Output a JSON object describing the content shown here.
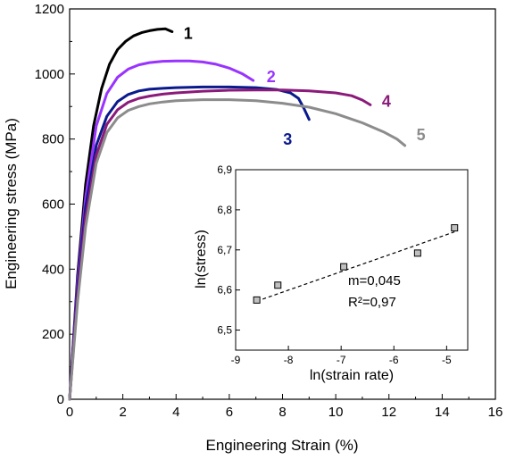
{
  "chart_data": [
    {
      "type": "line",
      "xlabel": "Engineering Strain (%)",
      "ylabel": "Engineering stress (MPa)",
      "xlim": [
        0,
        16
      ],
      "ylim": [
        0,
        1200
      ],
      "xticks": [
        0,
        2,
        4,
        6,
        8,
        10,
        12,
        14,
        16
      ],
      "yticks": [
        0,
        200,
        400,
        600,
        800,
        1000,
        1200
      ],
      "xtick_labels": [
        "0",
        "2",
        "4",
        "6",
        "8",
        "10",
        "12",
        "14",
        "16"
      ],
      "ytick_labels": [
        "0",
        "200",
        "400",
        "600",
        "800",
        "1000",
        "1200"
      ],
      "grid": false,
      "series": [
        {
          "label": "1",
          "color": "#000000",
          "x": [
            0,
            0.3,
            0.6,
            0.9,
            1.2,
            1.5,
            1.8,
            2.1,
            2.4,
            2.7,
            3.0,
            3.3,
            3.6,
            3.85
          ],
          "y": [
            0,
            380,
            660,
            840,
            955,
            1030,
            1075,
            1100,
            1117,
            1127,
            1133,
            1137,
            1139,
            1130
          ]
        },
        {
          "label": "2",
          "color": "#9933ff",
          "x": [
            0,
            0.3,
            0.6,
            1.0,
            1.4,
            1.8,
            2.2,
            2.6,
            3.0,
            3.5,
            4.0,
            4.5,
            5.0,
            5.5,
            6.0,
            6.5,
            6.9
          ],
          "y": [
            0,
            360,
            620,
            840,
            940,
            990,
            1015,
            1028,
            1035,
            1039,
            1040,
            1040,
            1037,
            1030,
            1018,
            1000,
            980
          ]
        },
        {
          "label": "3",
          "color": "#0a1a8c",
          "x": [
            0,
            0.3,
            0.6,
            1.0,
            1.4,
            1.8,
            2.2,
            2.6,
            3.0,
            3.5,
            4.0,
            5.0,
            6.0,
            7.0,
            7.8,
            8.3,
            8.6,
            8.8,
            9.0
          ],
          "y": [
            0,
            340,
            590,
            780,
            870,
            915,
            937,
            948,
            953,
            956,
            958,
            960,
            960,
            958,
            952,
            942,
            925,
            895,
            860
          ]
        },
        {
          "label": "4",
          "color": "#8b1a7a",
          "x": [
            0,
            0.3,
            0.6,
            1.0,
            1.4,
            1.8,
            2.2,
            2.6,
            3.0,
            3.5,
            4.0,
            5.0,
            6.0,
            7.0,
            8.0,
            9.0,
            10.0,
            10.6,
            11.0,
            11.3
          ],
          "y": [
            0,
            320,
            560,
            750,
            845,
            890,
            913,
            925,
            932,
            938,
            942,
            947,
            950,
            951,
            951,
            948,
            942,
            933,
            920,
            905
          ]
        },
        {
          "label": "5",
          "color": "#8c8c8c",
          "x": [
            0,
            0.3,
            0.6,
            1.0,
            1.4,
            1.8,
            2.2,
            2.6,
            3.0,
            3.5,
            4.0,
            5.0,
            6.0,
            7.0,
            8.0,
            9.0,
            10.0,
            11.0,
            11.8,
            12.3,
            12.6
          ],
          "y": [
            0,
            300,
            530,
            725,
            820,
            865,
            888,
            900,
            908,
            914,
            918,
            921,
            921,
            918,
            910,
            898,
            878,
            850,
            822,
            800,
            780
          ]
        }
      ]
    },
    {
      "type": "scatter",
      "xlabel": "ln(strain rate)",
      "ylabel": "ln(stress)",
      "xlim": [
        -9,
        -4.6
      ],
      "ylim": [
        6.45,
        6.9
      ],
      "xticks": [
        -9,
        -8,
        -7,
        -6,
        -5
      ],
      "yticks": [
        6.5,
        6.6,
        6.7,
        6.8,
        6.9
      ],
      "xtick_labels": [
        "-9",
        "-8",
        "-7",
        "-6",
        "-5"
      ],
      "ytick_labels": [
        "6,5",
        "6,6",
        "6,7",
        "6,8",
        "6,9"
      ],
      "points": {
        "x": [
          -8.6,
          -8.2,
          -6.95,
          -5.55,
          -4.85
        ],
        "y": [
          6.575,
          6.612,
          6.658,
          6.692,
          6.755
        ]
      },
      "fit_line": {
        "x": [
          -8.6,
          -4.85
        ],
        "y": [
          6.572,
          6.745
        ]
      },
      "annotations": [
        "m=0,045",
        "R²=0,97"
      ]
    }
  ]
}
